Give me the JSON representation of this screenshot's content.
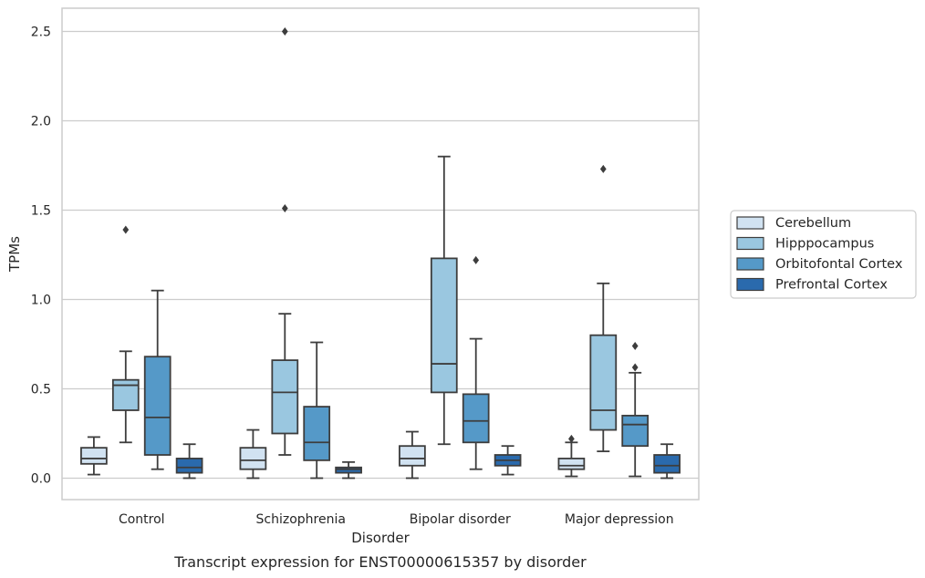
{
  "chart_data": {
    "type": "boxplot",
    "title": "",
    "caption": "Transcript expression for ENST00000615357 by disorder",
    "xlabel": "Disorder",
    "ylabel": "TPMs",
    "ylim": [
      -0.12,
      2.63
    ],
    "yticks": [
      "0.0",
      "0.5",
      "1.0",
      "1.5",
      "2.0",
      "2.5"
    ],
    "yticks_values": [
      0.0,
      0.5,
      1.0,
      1.5,
      2.0,
      2.5
    ],
    "grid": "horizontal",
    "legend_position": "right",
    "categories": [
      "Control",
      "Schizophrenia",
      "Bipolar disorder",
      "Major depression"
    ],
    "series": [
      {
        "name": "Cerebellum",
        "color": "#d1e2f1",
        "boxes": [
          {
            "whislo": 0.02,
            "q1": 0.08,
            "med": 0.11,
            "q3": 0.17,
            "whishi": 0.23,
            "fliers": []
          },
          {
            "whislo": 0.0,
            "q1": 0.05,
            "med": 0.1,
            "q3": 0.17,
            "whishi": 0.27,
            "fliers": []
          },
          {
            "whislo": 0.0,
            "q1": 0.07,
            "med": 0.11,
            "q3": 0.18,
            "whishi": 0.26,
            "fliers": []
          },
          {
            "whislo": 0.01,
            "q1": 0.05,
            "med": 0.07,
            "q3": 0.11,
            "whishi": 0.2,
            "fliers": [
              0.22
            ]
          }
        ]
      },
      {
        "name": "Hipppocampus",
        "color": "#9ac7e0",
        "boxes": [
          {
            "whislo": 0.2,
            "q1": 0.38,
            "med": 0.52,
            "q3": 0.55,
            "whishi": 0.71,
            "fliers": [
              1.39
            ]
          },
          {
            "whislo": 0.13,
            "q1": 0.25,
            "med": 0.48,
            "q3": 0.66,
            "whishi": 0.92,
            "fliers": [
              1.51,
              2.5
            ]
          },
          {
            "whislo": 0.19,
            "q1": 0.48,
            "med": 0.64,
            "q3": 1.23,
            "whishi": 1.8,
            "fliers": []
          },
          {
            "whislo": 0.15,
            "q1": 0.27,
            "med": 0.38,
            "q3": 0.8,
            "whishi": 1.09,
            "fliers": [
              1.73
            ]
          }
        ]
      },
      {
        "name": "Orbitofontal Cortex",
        "color": "#5599c8",
        "boxes": [
          {
            "whislo": 0.05,
            "q1": 0.13,
            "med": 0.34,
            "q3": 0.68,
            "whishi": 1.05,
            "fliers": []
          },
          {
            "whislo": 0.0,
            "q1": 0.1,
            "med": 0.2,
            "q3": 0.4,
            "whishi": 0.76,
            "fliers": []
          },
          {
            "whislo": 0.05,
            "q1": 0.2,
            "med": 0.32,
            "q3": 0.47,
            "whishi": 0.78,
            "fliers": [
              1.22
            ]
          },
          {
            "whislo": 0.01,
            "q1": 0.18,
            "med": 0.3,
            "q3": 0.35,
            "whishi": 0.59,
            "fliers": [
              0.62,
              0.74
            ]
          }
        ]
      },
      {
        "name": "Prefrontal Cortex",
        "color": "#2a6aad",
        "boxes": [
          {
            "whislo": 0.0,
            "q1": 0.03,
            "med": 0.06,
            "q3": 0.11,
            "whishi": 0.19,
            "fliers": []
          },
          {
            "whislo": 0.0,
            "q1": 0.03,
            "med": 0.05,
            "q3": 0.06,
            "whishi": 0.09,
            "fliers": []
          },
          {
            "whislo": 0.02,
            "q1": 0.07,
            "med": 0.1,
            "q3": 0.13,
            "whishi": 0.18,
            "fliers": []
          },
          {
            "whislo": 0.0,
            "q1": 0.03,
            "med": 0.07,
            "q3": 0.13,
            "whishi": 0.19,
            "fliers": []
          }
        ]
      }
    ]
  }
}
